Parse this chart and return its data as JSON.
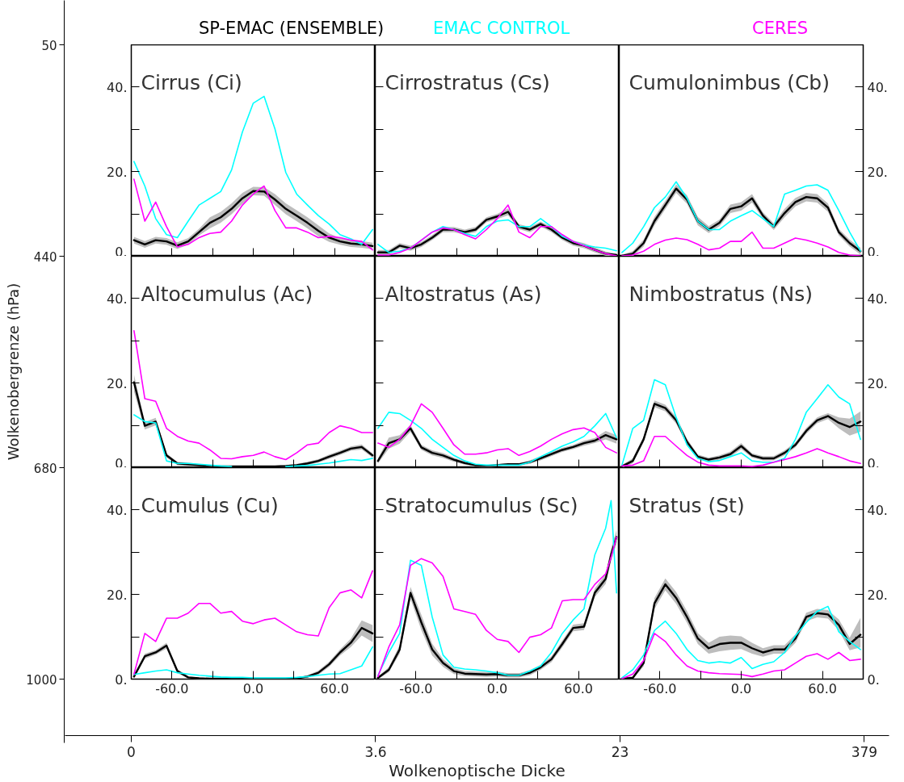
{
  "chart_data": [
    {
      "type": "other",
      "xlabel": "Wolkenoptische Dicke",
      "ylabel": "Wolkenobergrenze (hPa)",
      "categories": [
        "0",
        "3.6",
        "23",
        "379"
      ],
      "y_categories": [
        "50",
        "440",
        "680",
        "1000"
      ]
    },
    {
      "type": "line",
      "title": "Cirrus (Ci)",
      "legend": "top",
      "tick_labels": "y",
      "xlim": [
        -90,
        90
      ],
      "ylim": [
        0,
        50
      ],
      "xticks": [
        {
          "value": -60,
          "label": null
        },
        {
          "value": -30,
          "label": null
        },
        {
          "value": 0,
          "label": null
        },
        {
          "value": 30,
          "label": null
        },
        {
          "value": 60,
          "label": null
        }
      ],
      "yticks": [
        {
          "value": 0,
          "label": "0."
        },
        {
          "value": 10,
          "label": null
        },
        {
          "value": 20,
          "label": "20."
        },
        {
          "value": 30,
          "label": null
        },
        {
          "value": 40,
          "label": "40."
        }
      ],
      "x": [
        -88,
        -80,
        -72,
        -64,
        -56,
        -48,
        -40,
        -32,
        -24,
        -16,
        -8,
        0,
        8,
        16,
        24,
        32,
        40,
        48,
        56,
        64,
        72,
        80,
        88
      ],
      "series": [
        {
          "name": "SP-EMAC (ENSEMBLE)",
          "color": "#000000",
          "values": [
            3.8,
            2.8,
            3.8,
            3.5,
            2.5,
            3.5,
            5.7,
            7.9,
            9.2,
            11.2,
            13.7,
            15.4,
            15.3,
            13.4,
            11.2,
            9.6,
            7.9,
            6.0,
            4.4,
            3.5,
            3.0,
            2.8,
            2.4
          ],
          "lower": [
            3.0,
            2.0,
            3.0,
            2.7,
            1.7,
            2.7,
            4.9,
            6.6,
            7.9,
            9.9,
            12.4,
            14.4,
            14.3,
            12.1,
            9.9,
            8.3,
            6.6,
            4.7,
            3.4,
            2.7,
            2.2,
            2.0,
            1.6
          ],
          "upper": [
            4.6,
            3.6,
            4.6,
            4.3,
            3.3,
            4.3,
            6.5,
            9.2,
            10.5,
            12.5,
            15.0,
            16.4,
            16.3,
            14.7,
            12.5,
            10.9,
            9.2,
            7.3,
            5.4,
            4.3,
            3.8,
            3.6,
            3.2
          ]
        },
        {
          "name": "EMAC CONTROL",
          "color": "#00ffff",
          "values": [
            22.4,
            16.6,
            8.9,
            5.1,
            4.4,
            8.3,
            12.1,
            13.7,
            15.3,
            20.4,
            29.4,
            36.2,
            37.8,
            30.1,
            19.8,
            14.7,
            12.1,
            9.6,
            7.6,
            5.1,
            4.1,
            2.8,
            6.3
          ]
        },
        {
          "name": "CERES",
          "color": "#ff00ff",
          "values": [
            18.2,
            8.3,
            12.8,
            7.0,
            2.2,
            2.8,
            4.4,
            5.4,
            5.7,
            8.3,
            12.1,
            14.7,
            16.6,
            10.8,
            6.7,
            6.7,
            5.7,
            4.4,
            4.7,
            4.4,
            3.8,
            3.5,
            1.5
          ]
        }
      ]
    },
    {
      "type": "line",
      "title": "Cirrostratus (Cs)",
      "tick_labels": false,
      "xlim": [
        -90,
        90
      ],
      "ylim": [
        0,
        50
      ],
      "xticks": [
        {
          "value": -60,
          "label": null
        },
        {
          "value": -30,
          "label": null
        },
        {
          "value": 0,
          "label": null
        },
        {
          "value": 30,
          "label": null
        },
        {
          "value": 60,
          "label": null
        }
      ],
      "yticks": [
        {
          "value": 0,
          "label": null
        },
        {
          "value": 10,
          "label": null
        },
        {
          "value": 20,
          "label": null
        },
        {
          "value": 30,
          "label": null
        },
        {
          "value": 40,
          "label": null
        }
      ],
      "x": [
        -88,
        -80,
        -72,
        -64,
        -56,
        -48,
        -40,
        -32,
        -24,
        -16,
        -8,
        0,
        8,
        16,
        24,
        32,
        40,
        48,
        56,
        64,
        72,
        80,
        88
      ],
      "series": [
        {
          "color": "#000000",
          "values": [
            0.9,
            0.9,
            2.5,
            1.9,
            2.8,
            4.4,
            6.3,
            6.3,
            5.7,
            6.3,
            8.6,
            9.4,
            10.5,
            7.0,
            6.3,
            7.6,
            6.3,
            4.4,
            3.1,
            2.5,
            1.5,
            0.6,
            0.3
          ],
          "lower": [
            0.3,
            0.3,
            1.9,
            1.3,
            2.2,
            3.8,
            5.7,
            5.7,
            5.1,
            5.7,
            8.0,
            8.8,
            9.7,
            6.4,
            5.7,
            7.0,
            5.7,
            3.8,
            2.5,
            1.9,
            0.9,
            0.1,
            0.0
          ],
          "upper": [
            1.5,
            1.5,
            3.1,
            2.5,
            3.4,
            5.0,
            6.9,
            6.9,
            6.3,
            6.9,
            9.2,
            10.0,
            11.3,
            7.6,
            6.9,
            8.2,
            6.9,
            5.0,
            3.7,
            3.1,
            2.1,
            1.1,
            0.6
          ]
        },
        {
          "color": "#00ffff",
          "values": [
            2.8,
            0.9,
            1.2,
            1.9,
            3.8,
            5.7,
            7.0,
            6.3,
            5.4,
            4.7,
            7.0,
            8.3,
            8.6,
            7.0,
            7.0,
            8.9,
            7.0,
            4.7,
            3.5,
            2.6,
            2.2,
            1.9,
            1.3
          ]
        },
        {
          "color": "#ff00ff",
          "values": [
            0.3,
            0.3,
            0.9,
            1.9,
            3.8,
            5.7,
            6.7,
            6.3,
            5.1,
            4.1,
            6.3,
            8.9,
            12.1,
            5.7,
            4.4,
            7.0,
            7.0,
            5.1,
            3.5,
            2.5,
            1.5,
            0.6,
            0.1
          ]
        }
      ]
    },
    {
      "type": "line",
      "title": "Cumulonimbus (Cb)",
      "tick_labels": "y",
      "xlim": [
        -90,
        90
      ],
      "ylim": [
        0,
        50
      ],
      "xticks": [
        {
          "value": -60,
          "label": null
        },
        {
          "value": -30,
          "label": null
        },
        {
          "value": 0,
          "label": null
        },
        {
          "value": 30,
          "label": null
        },
        {
          "value": 60,
          "label": null
        }
      ],
      "yticks": [
        {
          "value": 0,
          "label": "0."
        },
        {
          "value": 10,
          "label": null
        },
        {
          "value": 20,
          "label": "20."
        },
        {
          "value": 30,
          "label": null
        },
        {
          "value": 40,
          "label": "40."
        }
      ],
      "x": [
        -88,
        -80,
        -72,
        -64,
        -56,
        -48,
        -40,
        -32,
        -24,
        -16,
        -8,
        0,
        8,
        16,
        24,
        32,
        40,
        48,
        56,
        64,
        72,
        80,
        88
      ],
      "series": [
        {
          "color": "#000000",
          "values": [
            0.1,
            0.6,
            3.1,
            8.3,
            12.1,
            16.0,
            13.4,
            8.3,
            6.3,
            7.9,
            11.2,
            11.8,
            13.7,
            9.6,
            7.0,
            10.2,
            12.8,
            14.0,
            13.7,
            11.5,
            5.7,
            3.1,
            1.2
          ],
          "lower": [
            0.0,
            0.0,
            2.3,
            7.3,
            11.1,
            15.0,
            12.4,
            7.3,
            5.5,
            7.1,
            10.2,
            10.8,
            12.7,
            8.8,
            6.2,
            9.2,
            11.8,
            13.0,
            12.7,
            10.5,
            4.9,
            2.3,
            0.4
          ],
          "upper": [
            0.4,
            1.2,
            3.9,
            9.3,
            13.1,
            17.0,
            14.4,
            9.3,
            7.1,
            8.7,
            12.2,
            12.8,
            14.7,
            10.4,
            7.8,
            11.2,
            13.8,
            15.0,
            14.7,
            12.5,
            6.5,
            3.9,
            2.0
          ]
        },
        {
          "color": "#00ffff",
          "values": [
            0.9,
            3.1,
            7.0,
            11.5,
            14.0,
            17.6,
            13.7,
            8.3,
            6.3,
            6.3,
            8.3,
            9.6,
            10.8,
            8.9,
            7.0,
            14.7,
            15.6,
            16.6,
            16.9,
            15.6,
            10.8,
            5.7,
            1.2
          ]
        },
        {
          "color": "#ff00ff",
          "values": [
            0.1,
            0.3,
            1.2,
            2.8,
            3.8,
            4.3,
            3.9,
            2.8,
            1.5,
            1.9,
            3.5,
            3.5,
            5.7,
            1.9,
            1.9,
            3.1,
            4.3,
            3.8,
            3.1,
            2.2,
            0.9,
            0.3,
            0.1
          ]
        }
      ]
    },
    {
      "type": "line",
      "title": "Altocumulus (Ac)",
      "tick_labels": "y",
      "xlim": [
        -90,
        90
      ],
      "ylim": [
        0,
        50
      ],
      "xticks": [
        {
          "value": -60,
          "label": null
        },
        {
          "value": -30,
          "label": null
        },
        {
          "value": 0,
          "label": null
        },
        {
          "value": 30,
          "label": null
        },
        {
          "value": 60,
          "label": null
        }
      ],
      "yticks": [
        {
          "value": 0,
          "label": "0."
        },
        {
          "value": 10,
          "label": null
        },
        {
          "value": 20,
          "label": "20."
        },
        {
          "value": 30,
          "label": null
        },
        {
          "value": 40,
          "label": "40."
        }
      ],
      "x": [
        -88,
        -80,
        -72,
        -64,
        -56,
        -48,
        -40,
        -32,
        -24,
        -16,
        -8,
        0,
        8,
        16,
        24,
        32,
        40,
        48,
        56,
        64,
        72,
        80,
        88
      ],
      "series": [
        {
          "color": "#000000",
          "values": [
            20.2,
            9.9,
            10.9,
            2.9,
            1.0,
            0.8,
            0.6,
            0.4,
            0.3,
            0.3,
            0.3,
            0.3,
            0.3,
            0.3,
            0.4,
            0.6,
            1.0,
            1.6,
            2.6,
            3.5,
            4.5,
            4.9,
            2.9
          ],
          "lower": [
            18.0,
            9.0,
            10.0,
            2.4,
            0.6,
            0.4,
            0.3,
            0.2,
            0.1,
            0.1,
            0.1,
            0.1,
            0.1,
            0.1,
            0.2,
            0.3,
            0.6,
            1.2,
            2.1,
            3.0,
            4.0,
            4.3,
            2.4
          ],
          "upper": [
            22.0,
            10.8,
            11.8,
            3.4,
            1.4,
            1.2,
            0.9,
            0.6,
            0.5,
            0.5,
            0.5,
            0.5,
            0.5,
            0.5,
            0.6,
            0.9,
            1.4,
            2.0,
            3.1,
            4.0,
            5.0,
            5.5,
            3.4
          ]
        },
        {
          "color": "#00ffff",
          "values": [
            12.5,
            10.9,
            10.6,
            1.6,
            1.0,
            1.0,
            0.8,
            0.6,
            0.4,
            0.3,
            null,
            null,
            null,
            null,
            0.3,
            0.4,
            0.5,
            0.8,
            1.1,
            1.5,
            1.9,
            1.7,
            2.2
          ]
        },
        {
          "color": "#ff00ff",
          "values": [
            32.4,
            16.3,
            15.7,
            9.3,
            7.4,
            6.3,
            5.8,
            4.2,
            2.2,
            2.1,
            2.6,
            2.9,
            3.7,
            2.6,
            1.9,
            3.5,
            5.4,
            5.8,
            8.3,
            9.9,
            9.3,
            8.3,
            8.3
          ]
        }
      ]
    },
    {
      "type": "line",
      "title": "Altostratus (As)",
      "tick_labels": false,
      "xlim": [
        -90,
        90
      ],
      "ylim": [
        0,
        50
      ],
      "xticks": [
        {
          "value": -60,
          "label": null
        },
        {
          "value": -30,
          "label": null
        },
        {
          "value": 0,
          "label": null
        },
        {
          "value": 30,
          "label": null
        },
        {
          "value": 60,
          "label": null
        }
      ],
      "yticks": [
        {
          "value": 0,
          "label": null
        },
        {
          "value": 10,
          "label": null
        },
        {
          "value": 20,
          "label": null
        },
        {
          "value": 30,
          "label": null
        },
        {
          "value": 40,
          "label": null
        }
      ],
      "x": [
        -88,
        -80,
        -72,
        -64,
        -56,
        -48,
        -40,
        -32,
        -24,
        -16,
        -8,
        0,
        8,
        16,
        24,
        32,
        40,
        48,
        56,
        64,
        72,
        80,
        88
      ],
      "series": [
        {
          "color": "#000000",
          "values": [
            1.6,
            5.8,
            6.7,
            9.3,
            4.8,
            3.5,
            2.9,
            1.9,
            1.1,
            0.6,
            0.4,
            0.6,
            0.8,
            0.8,
            1.3,
            2.2,
            3.2,
            4.2,
            4.9,
            5.8,
            6.4,
            7.7,
            6.7
          ],
          "lower": [
            1.0,
            4.5,
            5.7,
            8.5,
            4.2,
            2.9,
            2.3,
            1.4,
            0.7,
            0.3,
            0.1,
            0.3,
            0.5,
            0.5,
            0.9,
            1.7,
            2.7,
            3.7,
            4.4,
            5.2,
            5.8,
            6.7,
            5.7
          ],
          "upper": [
            2.2,
            7.1,
            7.7,
            10.1,
            5.4,
            4.1,
            3.5,
            2.4,
            1.5,
            0.9,
            0.7,
            0.9,
            1.1,
            1.1,
            1.7,
            2.7,
            3.7,
            4.7,
            5.4,
            6.4,
            7.0,
            8.7,
            7.7
          ]
        },
        {
          "color": "#00ffff",
          "values": [
            9.3,
            13.1,
            12.8,
            11.2,
            9.3,
            6.7,
            4.8,
            2.9,
            1.6,
            0.8,
            0.6,
            0.6,
            0.6,
            0.6,
            1.3,
            2.6,
            3.8,
            5.1,
            6.1,
            7.4,
            9.9,
            12.8,
            7.1
          ]
        },
        {
          "color": "#ff00ff",
          "values": [
            5.8,
            4.8,
            6.7,
            9.9,
            15.1,
            13.1,
            9.3,
            5.4,
            3.2,
            3.2,
            3.5,
            4.2,
            4.5,
            2.9,
            3.8,
            5.1,
            6.7,
            8.0,
            9.0,
            9.4,
            8.3,
            4.8,
            3.5
          ]
        }
      ]
    },
    {
      "type": "line",
      "title": "Nimbostratus (Ns)",
      "tick_labels": "y",
      "xlim": [
        -90,
        90
      ],
      "ylim": [
        0,
        50
      ],
      "xticks": [
        {
          "value": -60,
          "label": null
        },
        {
          "value": -30,
          "label": null
        },
        {
          "value": 0,
          "label": null
        },
        {
          "value": 30,
          "label": null
        },
        {
          "value": 60,
          "label": null
        }
      ],
      "yticks": [
        {
          "value": 0,
          "label": "0."
        },
        {
          "value": 10,
          "label": null
        },
        {
          "value": 20,
          "label": "20."
        },
        {
          "value": 30,
          "label": null
        },
        {
          "value": 40,
          "label": "40."
        }
      ],
      "x": [
        -88,
        -80,
        -72,
        -64,
        -56,
        -48,
        -40,
        -32,
        -24,
        -16,
        -8,
        0,
        8,
        16,
        24,
        32,
        40,
        48,
        56,
        64,
        72,
        80,
        88
      ],
      "series": [
        {
          "color": "#000000",
          "values": [
            0.3,
            1.6,
            6.7,
            15.1,
            14.1,
            11.2,
            6.1,
            2.6,
            1.9,
            2.4,
            3.2,
            5.1,
            2.9,
            2.2,
            2.2,
            3.5,
            5.4,
            8.7,
            11.2,
            12.2,
            10.6,
            9.6,
            10.9
          ],
          "lower": [
            0.0,
            1.0,
            6.0,
            14.3,
            13.3,
            10.4,
            5.4,
            2.1,
            1.4,
            1.9,
            2.6,
            4.4,
            2.4,
            1.7,
            1.7,
            2.9,
            4.8,
            8.0,
            10.5,
            11.5,
            9.3,
            7.6,
            8.5
          ],
          "upper": [
            0.6,
            2.2,
            7.4,
            15.9,
            14.9,
            12.0,
            6.8,
            3.1,
            2.4,
            2.9,
            3.8,
            5.8,
            3.4,
            2.7,
            2.7,
            4.1,
            6.0,
            9.4,
            11.9,
            12.9,
            11.9,
            11.6,
            13.3
          ]
        },
        {
          "color": "#00ffff",
          "values": [
            0.6,
            9.3,
            11.2,
            20.8,
            19.6,
            11.9,
            5.4,
            2.2,
            1.4,
            1.7,
            2.6,
            3.5,
            1.6,
            1.3,
            1.3,
            2.2,
            6.7,
            13.1,
            16.3,
            19.6,
            16.7,
            15.1,
            6.7
          ]
        },
        {
          "color": "#ff00ff",
          "values": [
            0.4,
            0.6,
            1.6,
            7.4,
            7.4,
            5.1,
            2.9,
            1.3,
            0.6,
            0.4,
            0.4,
            0.4,
            0.3,
            0.6,
            1.3,
            1.9,
            2.6,
            3.5,
            4.5,
            3.5,
            2.6,
            1.6,
            1.0
          ]
        }
      ]
    },
    {
      "type": "line",
      "title": "Cumulus (Cu)",
      "xlim": [
        -90,
        90
      ],
      "ylim": [
        0,
        50
      ],
      "xticks": [
        {
          "value": -60,
          "label": "-60.0"
        },
        {
          "value": -30,
          "label": null
        },
        {
          "value": 0,
          "label": "0.0"
        },
        {
          "value": 30,
          "label": null
        },
        {
          "value": 60,
          "label": "60.0"
        }
      ],
      "yticks": [
        {
          "value": 0,
          "label": "0."
        },
        {
          "value": 10,
          "label": null
        },
        {
          "value": 20,
          "label": "20."
        },
        {
          "value": 30,
          "label": null
        },
        {
          "value": 40,
          "label": "40."
        }
      ],
      "x": [
        -88,
        -80,
        -72,
        -64,
        -56,
        -48,
        -40,
        -32,
        -24,
        -16,
        -8,
        0,
        8,
        16,
        24,
        32,
        40,
        48,
        56,
        64,
        72,
        80,
        88
      ],
      "series": [
        {
          "color": "#000000",
          "values": [
            0.6,
            5.4,
            6.3,
            7.9,
            1.9,
            0.4,
            0.2,
            0.1,
            0.1,
            0.1,
            0.1,
            0.1,
            0.1,
            0.1,
            0.1,
            0.2,
            0.6,
            1.5,
            3.5,
            6.3,
            8.6,
            12.1,
            10.8
          ],
          "lower": [
            0.2,
            4.8,
            5.8,
            7.2,
            1.4,
            0.2,
            0.0,
            0.0,
            0.0,
            0.0,
            0.0,
            0.0,
            0.0,
            0.0,
            0.0,
            0.0,
            0.3,
            1.0,
            2.9,
            5.6,
            7.6,
            10.3,
            8.8
          ],
          "upper": [
            1.0,
            6.0,
            6.8,
            8.6,
            2.4,
            0.6,
            0.4,
            0.2,
            0.2,
            0.2,
            0.2,
            0.2,
            0.2,
            0.2,
            0.2,
            0.4,
            0.9,
            2.0,
            4.1,
            7.0,
            9.6,
            13.9,
            12.8
          ]
        },
        {
          "color": "#00ffff",
          "values": [
            1.1,
            1.5,
            1.9,
            2.2,
            1.5,
            1.2,
            0.9,
            0.7,
            0.5,
            0.4,
            0.4,
            0.3,
            0.3,
            0.3,
            0.3,
            0.4,
            0.6,
            0.9,
            1.2,
            1.3,
            2.2,
            3.1,
            7.6
          ]
        },
        {
          "color": "#ff00ff",
          "values": [
            1.2,
            10.8,
            8.9,
            14.4,
            14.4,
            15.6,
            17.9,
            17.9,
            15.6,
            16.0,
            13.7,
            13.1,
            14.0,
            14.4,
            12.8,
            11.2,
            10.5,
            10.2,
            16.9,
            20.4,
            21.1,
            19.2,
            25.6
          ]
        }
      ]
    },
    {
      "type": "line",
      "title": "Stratocumulus (Sc)",
      "tick_labels": "x",
      "xlim": [
        -90,
        90
      ],
      "ylim": [
        0,
        50
      ],
      "xticks": [
        {
          "value": -60,
          "label": "-60.0"
        },
        {
          "value": -30,
          "label": null
        },
        {
          "value": 0,
          "label": "0.0"
        },
        {
          "value": 30,
          "label": null
        },
        {
          "value": 60,
          "label": "60.0"
        }
      ],
      "yticks": [
        {
          "value": 0,
          "label": null
        },
        {
          "value": 10,
          "label": null
        },
        {
          "value": 20,
          "label": null
        },
        {
          "value": 30,
          "label": null
        },
        {
          "value": 40,
          "label": null
        }
      ],
      "x": [
        -88,
        -80,
        -72,
        -64,
        -56,
        -48,
        -40,
        -32,
        -24,
        -16,
        -8,
        0,
        8,
        16,
        24,
        32,
        40,
        48,
        56,
        64,
        72,
        80,
        84,
        88
      ],
      "series": [
        {
          "color": "#000000",
          "values": [
            0.3,
            2.2,
            7.0,
            20.4,
            13.4,
            7.0,
            3.8,
            1.9,
            1.3,
            1.2,
            1.1,
            1.2,
            0.9,
            0.9,
            1.5,
            2.8,
            4.7,
            8.3,
            12.1,
            12.4,
            20.4,
            23.7,
            29.4,
            33.6
          ],
          "lower": [
            0.0,
            1.6,
            6.0,
            19.0,
            11.6,
            5.6,
            2.9,
            1.2,
            0.7,
            0.6,
            0.5,
            0.6,
            0.4,
            0.4,
            0.9,
            2.2,
            4.0,
            7.5,
            11.3,
            11.6,
            19.4,
            22.5,
            27.9,
            32.0
          ],
          "upper": [
            0.6,
            2.8,
            8.0,
            21.8,
            15.2,
            8.4,
            4.7,
            2.6,
            1.9,
            1.8,
            1.7,
            1.8,
            1.4,
            1.4,
            2.1,
            3.4,
            5.4,
            9.1,
            12.9,
            13.2,
            21.4,
            24.9,
            30.9,
            35.2
          ]
        },
        {
          "color": "#00ffff",
          "values": [
            0.9,
            6.3,
            10.8,
            28.1,
            26.9,
            14.7,
            5.7,
            2.8,
            2.4,
            2.2,
            1.9,
            1.5,
            0.9,
            0.9,
            1.9,
            3.1,
            6.3,
            10.8,
            14.0,
            16.6,
            29.4,
            35.7,
            42.2,
            20.4
          ]
        },
        {
          "color": "#ff00ff",
          "values": [
            0.6,
            7.6,
            12.8,
            26.9,
            28.5,
            27.5,
            24.3,
            16.6,
            16.0,
            15.3,
            11.5,
            9.4,
            8.9,
            6.3,
            9.9,
            10.5,
            12.1,
            18.5,
            18.8,
            18.8,
            22.4,
            24.9,
            28.8,
            33.6
          ]
        }
      ]
    },
    {
      "type": "line",
      "title": "Stratus (St)",
      "xlim": [
        -90,
        90
      ],
      "ylim": [
        0,
        50
      ],
      "xticks": [
        {
          "value": -60,
          "label": "-60.0"
        },
        {
          "value": -30,
          "label": null
        },
        {
          "value": 0,
          "label": "0.0"
        },
        {
          "value": 30,
          "label": null
        },
        {
          "value": 60,
          "label": "60.0"
        }
      ],
      "yticks": [
        {
          "value": 0,
          "label": "0."
        },
        {
          "value": 10,
          "label": null
        },
        {
          "value": 20,
          "label": "20."
        },
        {
          "value": 30,
          "label": null
        },
        {
          "value": 40,
          "label": "40."
        }
      ],
      "x": [
        -88,
        -80,
        -72,
        -64,
        -56,
        -48,
        -40,
        -32,
        -24,
        -16,
        -8,
        0,
        8,
        16,
        24,
        32,
        40,
        48,
        56,
        64,
        72,
        80,
        88
      ],
      "series": [
        {
          "color": "#000000",
          "values": [
            0.1,
            0.3,
            3.8,
            17.9,
            22.4,
            19.2,
            14.7,
            9.6,
            7.3,
            8.3,
            8.6,
            8.6,
            7.3,
            6.3,
            7.0,
            7.0,
            9.6,
            14.7,
            15.6,
            15.3,
            12.8,
            8.3,
            10.5
          ],
          "lower": [
            0.0,
            0.0,
            3.0,
            16.6,
            21.0,
            17.8,
            13.3,
            8.3,
            6.0,
            6.6,
            6.9,
            7.1,
            6.0,
            5.3,
            6.0,
            6.0,
            8.6,
            13.7,
            14.6,
            14.3,
            11.5,
            6.8,
            7.5
          ],
          "upper": [
            0.3,
            0.7,
            4.6,
            19.2,
            23.8,
            20.6,
            16.1,
            10.9,
            8.6,
            10.0,
            10.3,
            10.1,
            8.6,
            7.3,
            8.0,
            8.0,
            10.6,
            15.7,
            16.6,
            16.3,
            14.1,
            9.8,
            14.5
          ]
        },
        {
          "color": "#00ffff",
          "values": [
            0.3,
            2.2,
            5.7,
            11.5,
            13.7,
            10.8,
            7.0,
            4.4,
            3.8,
            4.1,
            3.8,
            5.1,
            2.5,
            3.5,
            4.1,
            6.3,
            10.2,
            13.4,
            16.0,
            17.2,
            11.2,
            8.9,
            7.0
          ]
        },
        {
          "color": "#ff00ff",
          "values": [
            0.1,
            1.2,
            4.4,
            10.8,
            8.9,
            5.7,
            3.1,
            1.9,
            1.5,
            1.3,
            1.2,
            1.1,
            0.6,
            1.2,
            1.9,
            2.2,
            3.8,
            5.4,
            6.0,
            4.7,
            6.3,
            4.4,
            4.7
          ]
        }
      ]
    }
  ]
}
